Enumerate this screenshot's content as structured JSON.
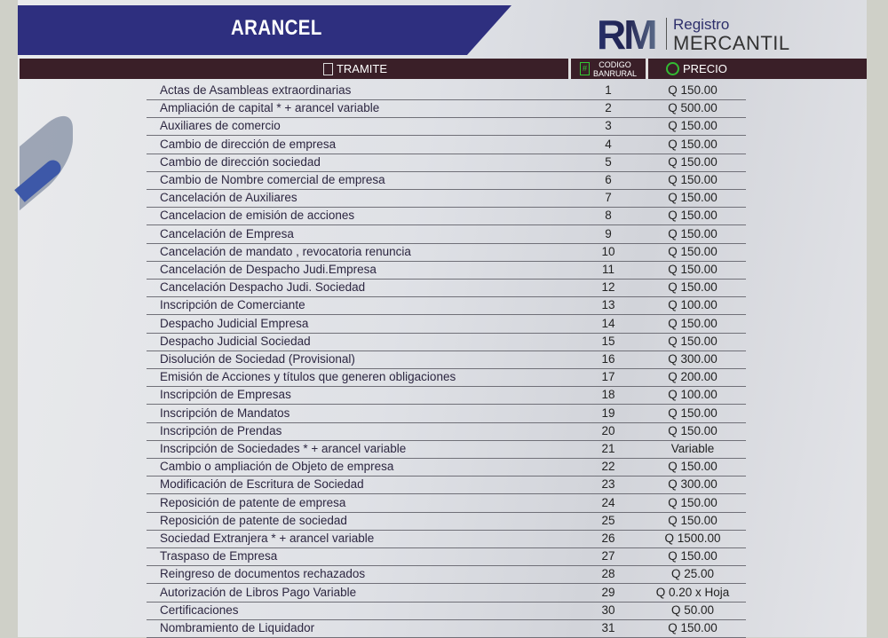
{
  "banner": {
    "title": "ARANCEL"
  },
  "logo": {
    "mark": "RM",
    "line1": "Registro",
    "line2": "MERCANTIL"
  },
  "header": {
    "tramite": "TRAMITE",
    "codigo_line1": "CODIGO",
    "codigo_line2": "BANRURAL",
    "precio": "PRECIO"
  },
  "colors": {
    "banner": "#2e2f7f",
    "header_bar": "#3a1f28",
    "icon_green": "#33bb33"
  },
  "rows": [
    {
      "tramite": "Actas de Asambleas extraordinarias",
      "codigo": "1",
      "precio": "Q 150.00"
    },
    {
      "tramite": "Ampliación  de capital * + arancel variable",
      "codigo": "2",
      "precio": "Q 500.00"
    },
    {
      "tramite": "Auxiliares de comercio",
      "codigo": "3",
      "precio": "Q 150.00"
    },
    {
      "tramite": "Cambio de dirección de empresa",
      "codigo": "4",
      "precio": "Q 150.00"
    },
    {
      "tramite": "Cambio de dirección sociedad",
      "codigo": "5",
      "precio": "Q 150.00"
    },
    {
      "tramite": "Cambio de Nombre comercial de empresa",
      "codigo": "6",
      "precio": "Q 150.00"
    },
    {
      "tramite": "Cancelación de Auxiliares",
      "codigo": "7",
      "precio": "Q 150.00"
    },
    {
      "tramite": "Cancelacion de emisión de acciones",
      "codigo": "8",
      "precio": "Q 150.00"
    },
    {
      "tramite": "Cancelación de Empresa",
      "codigo": "9",
      "precio": "Q 150.00"
    },
    {
      "tramite": "Cancelación de mandato , revocatoria renuncia",
      "codigo": "10",
      "precio": "Q 150.00"
    },
    {
      "tramite": "Cancelación de Despacho Judi.Empresa",
      "codigo": "11",
      "precio": "Q 150.00"
    },
    {
      "tramite": "Cancelación Despacho Judi. Sociedad",
      "codigo": "12",
      "precio": "Q 150.00"
    },
    {
      "tramite": "Inscripción de Comerciante",
      "codigo": "13",
      "precio": "Q 100.00"
    },
    {
      "tramite": "Despacho Judicial Empresa",
      "codigo": "14",
      "precio": "Q 150.00"
    },
    {
      "tramite": "Despacho Judicial Sociedad",
      "codigo": "15",
      "precio": "Q 150.00"
    },
    {
      "tramite": "Disolución de Sociedad (Provisional)",
      "codigo": "16",
      "precio": "Q 300.00"
    },
    {
      "tramite": "Emisión de Acciones y títulos que generen obligaciones",
      "codigo": "17",
      "precio": "Q 200.00"
    },
    {
      "tramite": "Inscripción de Empresas",
      "codigo": "18",
      "precio": "Q 100.00"
    },
    {
      "tramite": "Inscripción de Mandatos",
      "codigo": "19",
      "precio": "Q 150.00"
    },
    {
      "tramite": "Inscripción de Prendas",
      "codigo": "20",
      "precio": "Q 150.00"
    },
    {
      "tramite": "Inscripción de Sociedades * + arancel variable",
      "codigo": "21",
      "precio": "Variable"
    },
    {
      "tramite": "Cambio o ampliación de Objeto de empresa",
      "codigo": "22",
      "precio": "Q 150.00"
    },
    {
      "tramite": "Modificación de Escritura de Sociedad",
      "codigo": "23",
      "precio": "Q 300.00"
    },
    {
      "tramite": "Reposición de patente  de empresa",
      "codigo": "24",
      "precio": "Q 150.00"
    },
    {
      "tramite": "Reposición de patente de sociedad",
      "codigo": "25",
      "precio": "Q 150.00"
    },
    {
      "tramite": "Sociedad Extranjera * + arancel variable",
      "codigo": "26",
      "precio": "Q 1500.00"
    },
    {
      "tramite": "Traspaso de Empresa",
      "codigo": "27",
      "precio": "Q 150.00"
    },
    {
      "tramite": "Reingreso de documentos rechazados",
      "codigo": "28",
      "precio": "Q 25.00"
    },
    {
      "tramite": "Autorización de Libros Pago Variable",
      "codigo": "29",
      "precio": "Q 0.20 x Hoja"
    },
    {
      "tramite": "Certificaciones",
      "codigo": "30",
      "precio": "Q 50.00"
    },
    {
      "tramite": "Nombramiento de Liquidador",
      "codigo": "31",
      "precio": "Q 150.00"
    }
  ]
}
